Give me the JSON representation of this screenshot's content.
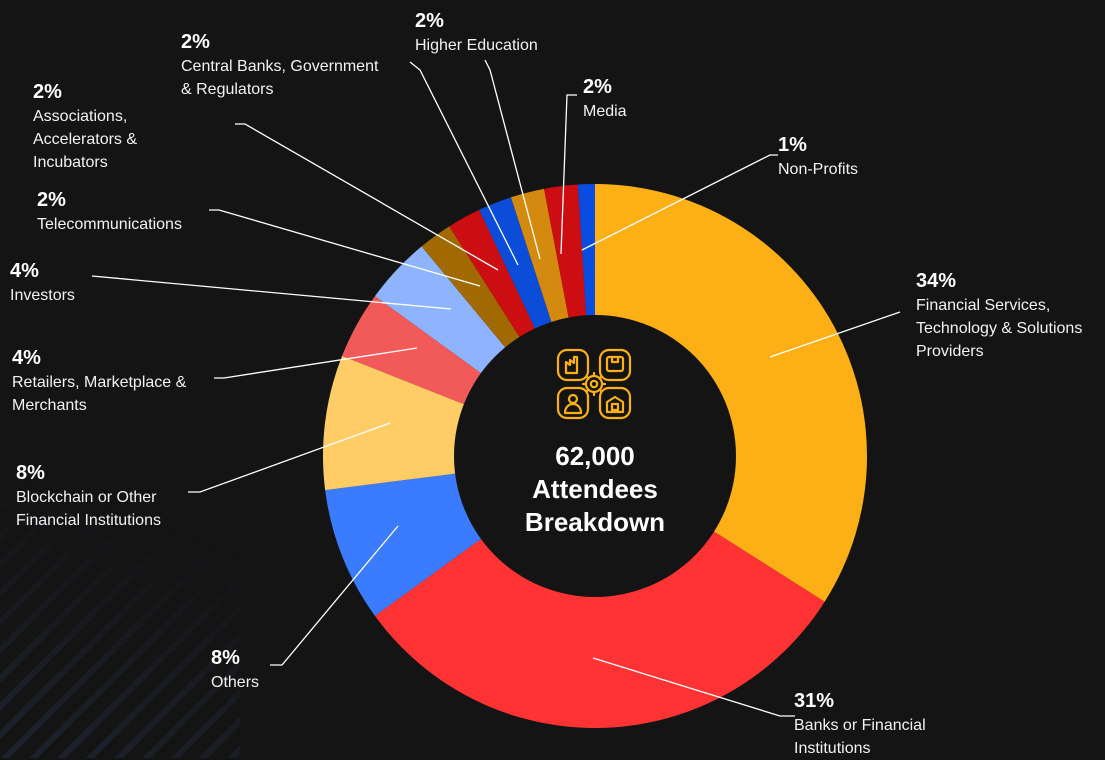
{
  "chart_data": {
    "type": "pie",
    "title": "62,000 Attendees Breakdown",
    "center_lines": [
      "62,000",
      "Attendees",
      "Breakdown"
    ],
    "slices": [
      {
        "pct_label": "34%",
        "value": 34,
        "label_lines": [
          "Financial Services,",
          "Technology & Solutions",
          "Providers"
        ],
        "color": "#FCB016"
      },
      {
        "pct_label": "31%",
        "value": 31,
        "label_lines": [
          "Banks or Financial",
          "Institutions"
        ],
        "color": "#FF3333"
      },
      {
        "pct_label": "8%",
        "value": 8,
        "label_lines": [
          "Others"
        ],
        "color": "#3B7BFF"
      },
      {
        "pct_label": "8%",
        "value": 8,
        "label_lines": [
          "Blockchain or Other",
          "Financial Institutions"
        ],
        "color": "#FFCC66"
      },
      {
        "pct_label": "4%",
        "value": 4,
        "label_lines": [
          "Retailers, Marketplace &",
          "Merchants"
        ],
        "color": "#F25A5A"
      },
      {
        "pct_label": "4%",
        "value": 4,
        "label_lines": [
          "Investors"
        ],
        "color": "#8FB4FF"
      },
      {
        "pct_label": "2%",
        "value": 2,
        "label_lines": [
          "Telecommunications"
        ],
        "color": "#A06A00"
      },
      {
        "pct_label": "2%",
        "value": 2,
        "label_lines": [
          "Associations,",
          "Accelerators &",
          "Incubators"
        ],
        "color": "#CC0D12"
      },
      {
        "pct_label": "2%",
        "value": 2,
        "label_lines": [
          "Central Banks, Government",
          "& Regulators"
        ],
        "color": "#0B4CD8"
      },
      {
        "pct_label": "2%",
        "value": 2,
        "label_lines": [
          "Higher Education"
        ],
        "color": "#D48A0E"
      },
      {
        "pct_label": "2%",
        "value": 2,
        "label_lines": [
          "Media"
        ],
        "color": "#CC0D12"
      },
      {
        "pct_label": "1%",
        "value": 1,
        "label_lines": [
          "Non-Profits"
        ],
        "color": "#0B4CE0"
      }
    ]
  },
  "colors": {
    "background": "#141414",
    "center": "#141414",
    "icon": "#FCB016",
    "leader": "#FFFFFF"
  },
  "icons": [
    "factory-icon",
    "box-icon",
    "gear-icon",
    "person-icon",
    "store-icon"
  ]
}
